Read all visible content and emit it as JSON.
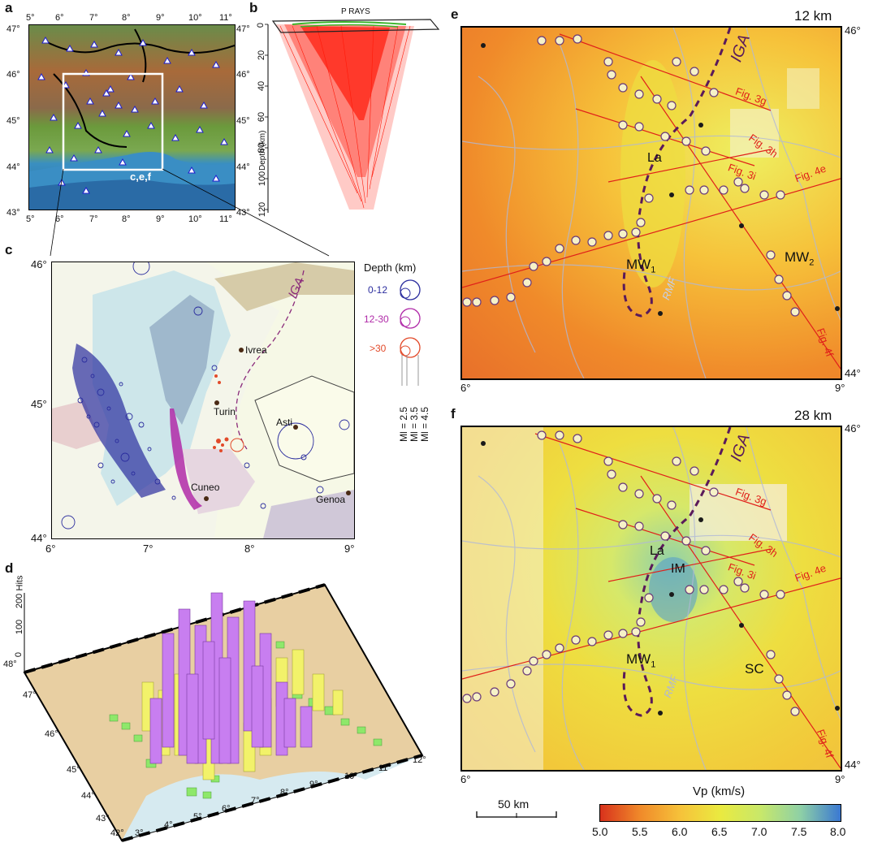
{
  "figure": {
    "panels": {
      "a": {
        "label": "a",
        "lon_ticks": [
          "5°",
          "6°",
          "7°",
          "8°",
          "9°",
          "10°",
          "11°"
        ],
        "lat_ticks": [
          "47°",
          "46°",
          "45°",
          "44°",
          "43°"
        ],
        "box_label": "c,e,f"
      },
      "b": {
        "label": "b",
        "title": "P RAYS",
        "axis_label": "Depth (km)",
        "depth_ticks": [
          "0",
          "20",
          "40",
          "60",
          "80",
          "100",
          "120"
        ]
      },
      "c": {
        "label": "c",
        "lon_ticks": [
          "6°",
          "7°",
          "8°",
          "9°"
        ],
        "lat_ticks": [
          "46°",
          "45°",
          "44°"
        ],
        "towns": [
          "Ivrea",
          "Turin",
          "Asti",
          "Cuneo",
          "Genoa"
        ],
        "iga_label": "IGA",
        "legend": {
          "title": "Depth (km)",
          "classes": [
            {
              "label": "0-12",
              "color": "#2b2d9e"
            },
            {
              "label": "12-30",
              "color": "#b02aa8"
            },
            {
              "label": ">30",
              "color": "#e24a2a"
            }
          ],
          "magnitudes": [
            "Ml = 2.5",
            "Ml = 3.5",
            "Ml = 4.5"
          ]
        }
      },
      "d": {
        "label": "d",
        "z_label": "Hits",
        "z_ticks": [
          "0",
          "100",
          "200"
        ],
        "lat_ticks": [
          "48°",
          "47°",
          "46°",
          "45°",
          "44°",
          "43°",
          "42°"
        ],
        "lon_ticks": [
          "3°",
          "4°",
          "5°",
          "6°",
          "7°",
          "8°",
          "9°",
          "10°",
          "11°",
          "12°"
        ]
      },
      "e": {
        "label": "e",
        "depth": "12 km",
        "lat_top": "46°",
        "lat_bottom": "44°",
        "lon_left": "6°",
        "lon_right": "9°",
        "annotations": [
          "IGA",
          "La",
          "MW",
          "1",
          "MW",
          "2",
          "RMF"
        ],
        "sections": [
          "Fig. 3g",
          "Fig. 3h",
          "Fig. 3i",
          "Fig. 4e",
          "Fig. 4f"
        ]
      },
      "f": {
        "label": "f",
        "depth": "28 km",
        "lat_top": "46°",
        "lat_bottom": "44°",
        "lon_left": "6°",
        "lon_right": "9°",
        "annotations": [
          "IGA",
          "La",
          "IM",
          "MW",
          "1",
          "SC",
          "RMF"
        ],
        "sections": [
          "Fig. 3g",
          "Fig. 3h",
          "Fig. 3i",
          "Fig. 4e",
          "Fig. 4f"
        ]
      }
    },
    "scale_bar": "50 km",
    "colorbar": {
      "title": "Vp  (km/s)",
      "ticks": [
        "5.0",
        "5.5",
        "6.0",
        "6.5",
        "7.0",
        "7.5",
        "8.0"
      ],
      "colors": [
        "#d8321c",
        "#f08a2a",
        "#f6c23a",
        "#eaea40",
        "#c8e86a",
        "#8ed0a6",
        "#3a78d2"
      ]
    }
  }
}
